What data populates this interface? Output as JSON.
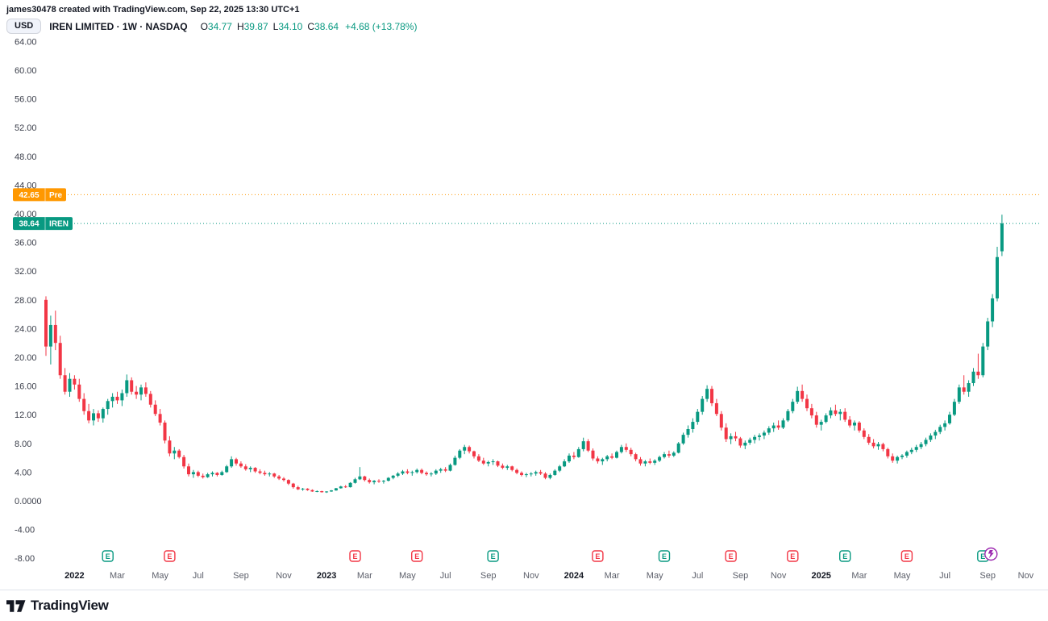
{
  "attribution": "james30478 created with TradingView.com, Sep 22, 2025 13:30 UTC+1",
  "toolbar": {
    "currency_label": "USD"
  },
  "legend": {
    "symbol_title": "IREN LIMITED · 1W · NASDAQ",
    "ohlc": {
      "open_label": "O",
      "open": "34.77",
      "high_label": "H",
      "high": "39.87",
      "low_label": "L",
      "low": "34.10",
      "close_label": "C",
      "close": "38.64",
      "change": "+4.68 (+13.78%)"
    }
  },
  "price_lines": [
    {
      "price": 42.65,
      "value": "42.65",
      "tag": "Pre",
      "color_key": "pre"
    },
    {
      "price": 38.64,
      "value": "38.64",
      "tag": "IREN",
      "color_key": "last"
    }
  ],
  "colors": {
    "up": "#089981",
    "down": "#f23645",
    "pre": "#ff9800",
    "last": "#089981",
    "flash": "#9c27b0",
    "axis_text": "#3a3e4a",
    "major_text": "#131722",
    "muted_text": "#5d606b",
    "border": "#e0e3eb"
  },
  "footer": {
    "brand": "TradingView"
  },
  "chart_data": {
    "type": "candlestick",
    "symbol": "IREN",
    "interval": "1W",
    "exchange": "NASDAQ",
    "title": "IREN LIMITED · 1W · NASDAQ",
    "ylim": [
      -8,
      64
    ],
    "grid": false,
    "y_ticks": [
      {
        "v": 64,
        "t": "64.00"
      },
      {
        "v": 60,
        "t": "60.00"
      },
      {
        "v": 56,
        "t": "56.00"
      },
      {
        "v": 52,
        "t": "52.00"
      },
      {
        "v": 48,
        "t": "48.00"
      },
      {
        "v": 44,
        "t": "44.00"
      },
      {
        "v": 40,
        "t": "40.00"
      },
      {
        "v": 36,
        "t": "36.00"
      },
      {
        "v": 32,
        "t": "32.00"
      },
      {
        "v": 28,
        "t": "28.00"
      },
      {
        "v": 24,
        "t": "24.00"
      },
      {
        "v": 20,
        "t": "20.00"
      },
      {
        "v": 16,
        "t": "16.00"
      },
      {
        "v": 12,
        "t": "12.00"
      },
      {
        "v": 8,
        "t": "8.00"
      },
      {
        "v": 4,
        "t": "4.00"
      },
      {
        "v": 0,
        "t": "0.0000"
      },
      {
        "v": -4,
        "t": "-4.00"
      },
      {
        "v": -8,
        "t": "-8.00"
      }
    ],
    "x_ticks": [
      {
        "i": 6,
        "t": "2022",
        "major": true
      },
      {
        "i": 15,
        "t": "Mar"
      },
      {
        "i": 24,
        "t": "May"
      },
      {
        "i": 32,
        "t": "Jul"
      },
      {
        "i": 41,
        "t": "Sep"
      },
      {
        "i": 50,
        "t": "Nov"
      },
      {
        "i": 59,
        "t": "2023",
        "major": true
      },
      {
        "i": 67,
        "t": "Mar"
      },
      {
        "i": 76,
        "t": "May"
      },
      {
        "i": 84,
        "t": "Jul"
      },
      {
        "i": 93,
        "t": "Sep"
      },
      {
        "i": 102,
        "t": "Nov"
      },
      {
        "i": 111,
        "t": "2024",
        "major": true
      },
      {
        "i": 119,
        "t": "Mar"
      },
      {
        "i": 128,
        "t": "May"
      },
      {
        "i": 137,
        "t": "Jul"
      },
      {
        "i": 146,
        "t": "Sep"
      },
      {
        "i": 154,
        "t": "Nov"
      },
      {
        "i": 163,
        "t": "2025",
        "major": true
      },
      {
        "i": 171,
        "t": "Mar"
      },
      {
        "i": 180,
        "t": "May"
      },
      {
        "i": 189,
        "t": "Jul"
      },
      {
        "i": 198,
        "t": "Sep"
      },
      {
        "i": 206,
        "t": "Nov"
      }
    ],
    "earnings_markers": [
      {
        "i": 13,
        "c": "green"
      },
      {
        "i": 26,
        "c": "red"
      },
      {
        "i": 65,
        "c": "red"
      },
      {
        "i": 78,
        "c": "red"
      },
      {
        "i": 94,
        "c": "green"
      },
      {
        "i": 116,
        "c": "red"
      },
      {
        "i": 130,
        "c": "green"
      },
      {
        "i": 144,
        "c": "red"
      },
      {
        "i": 157,
        "c": "red"
      },
      {
        "i": 168,
        "c": "green"
      },
      {
        "i": 181,
        "c": "red"
      },
      {
        "i": 197,
        "c": "green",
        "flash": true
      }
    ],
    "candles": [
      [
        28.0,
        28.5,
        20.2,
        21.5
      ],
      [
        21.5,
        25.8,
        19.0,
        24.5
      ],
      [
        24.5,
        26.5,
        21.0,
        22.0
      ],
      [
        22.0,
        23.0,
        17.0,
        17.5
      ],
      [
        17.5,
        18.5,
        14.8,
        15.2
      ],
      [
        15.2,
        17.8,
        14.5,
        17.0
      ],
      [
        17.0,
        17.5,
        15.5,
        16.2
      ],
      [
        16.2,
        17.0,
        13.8,
        14.2
      ],
      [
        14.2,
        15.0,
        12.0,
        12.5
      ],
      [
        12.5,
        13.5,
        10.8,
        11.2
      ],
      [
        11.2,
        12.8,
        10.5,
        12.2
      ],
      [
        12.2,
        12.6,
        11.0,
        11.5
      ],
      [
        11.5,
        13.0,
        10.9,
        12.8
      ],
      [
        12.8,
        14.2,
        12.0,
        13.9
      ],
      [
        13.9,
        15.0,
        13.0,
        14.5
      ],
      [
        14.5,
        15.2,
        13.5,
        14.0
      ],
      [
        14.0,
        15.5,
        13.2,
        15.0
      ],
      [
        15.0,
        17.6,
        14.5,
        16.8
      ],
      [
        16.8,
        17.2,
        14.8,
        15.2
      ],
      [
        15.2,
        16.0,
        14.2,
        14.8
      ],
      [
        14.8,
        16.2,
        14.0,
        15.8
      ],
      [
        15.8,
        16.5,
        14.5,
        14.9
      ],
      [
        14.9,
        15.3,
        13.0,
        13.4
      ],
      [
        13.4,
        14.0,
        11.8,
        12.1
      ],
      [
        12.1,
        12.8,
        10.5,
        10.9
      ],
      [
        10.9,
        11.2,
        8.0,
        8.4
      ],
      [
        8.4,
        9.0,
        6.2,
        6.6
      ],
      [
        6.6,
        7.5,
        5.8,
        7.0
      ],
      [
        7.0,
        7.2,
        5.9,
        6.1
      ],
      [
        6.1,
        6.4,
        4.5,
        4.8
      ],
      [
        4.8,
        5.2,
        3.4,
        3.7
      ],
      [
        3.7,
        4.3,
        3.2,
        4.0
      ],
      [
        4.0,
        4.2,
        3.3,
        3.5
      ],
      [
        3.5,
        3.8,
        3.1,
        3.3
      ],
      [
        3.3,
        3.9,
        3.2,
        3.7
      ],
      [
        3.7,
        4.1,
        3.4,
        3.9
      ],
      [
        3.9,
        4.0,
        3.4,
        3.6
      ],
      [
        3.6,
        4.2,
        3.5,
        4.0
      ],
      [
        4.0,
        5.0,
        3.9,
        4.8
      ],
      [
        4.8,
        6.2,
        4.6,
        5.8
      ],
      [
        5.8,
        6.0,
        4.9,
        5.2
      ],
      [
        5.2,
        5.5,
        4.6,
        4.8
      ],
      [
        4.8,
        5.1,
        4.2,
        4.4
      ],
      [
        4.4,
        4.8,
        4.0,
        4.6
      ],
      [
        4.6,
        4.7,
        3.9,
        4.1
      ],
      [
        4.1,
        4.4,
        3.7,
        3.9
      ],
      [
        3.9,
        4.2,
        3.5,
        3.7
      ],
      [
        3.7,
        4.0,
        3.4,
        3.8
      ],
      [
        3.8,
        3.9,
        3.2,
        3.4
      ],
      [
        3.4,
        3.6,
        2.9,
        3.1
      ],
      [
        3.1,
        3.3,
        2.7,
        2.9
      ],
      [
        2.9,
        3.0,
        2.2,
        2.4
      ],
      [
        2.4,
        2.5,
        1.7,
        1.9
      ],
      [
        1.9,
        2.1,
        1.5,
        1.6
      ],
      [
        1.6,
        1.8,
        1.4,
        1.7
      ],
      [
        1.7,
        1.75,
        1.4,
        1.5
      ],
      [
        1.5,
        1.6,
        1.25,
        1.3
      ],
      [
        1.3,
        1.45,
        1.2,
        1.35
      ],
      [
        1.35,
        1.4,
        1.15,
        1.2
      ],
      [
        1.2,
        1.35,
        1.1,
        1.3
      ],
      [
        1.3,
        1.5,
        1.25,
        1.45
      ],
      [
        1.45,
        1.8,
        1.4,
        1.75
      ],
      [
        1.75,
        2.1,
        1.7,
        2.0
      ],
      [
        2.0,
        2.2,
        1.8,
        1.9
      ],
      [
        1.9,
        2.6,
        1.85,
        2.5
      ],
      [
        2.5,
        3.2,
        2.4,
        3.0
      ],
      [
        3.0,
        4.7,
        2.9,
        3.4
      ],
      [
        3.4,
        3.5,
        2.7,
        2.9
      ],
      [
        2.9,
        3.1,
        2.4,
        2.6
      ],
      [
        2.6,
        2.9,
        2.3,
        2.8
      ],
      [
        2.8,
        3.0,
        2.5,
        2.7
      ],
      [
        2.7,
        2.9,
        2.4,
        2.8
      ],
      [
        2.8,
        3.3,
        2.7,
        3.2
      ],
      [
        3.2,
        3.6,
        3.0,
        3.5
      ],
      [
        3.5,
        4.0,
        3.3,
        3.8
      ],
      [
        3.8,
        4.3,
        3.6,
        4.1
      ],
      [
        4.1,
        4.4,
        3.7,
        3.9
      ],
      [
        3.9,
        4.2,
        3.5,
        4.0
      ],
      [
        4.0,
        4.5,
        3.8,
        4.3
      ],
      [
        4.3,
        4.5,
        3.7,
        3.9
      ],
      [
        3.9,
        4.1,
        3.5,
        3.7
      ],
      [
        3.7,
        4.0,
        3.4,
        3.8
      ],
      [
        3.8,
        4.4,
        3.6,
        4.2
      ],
      [
        4.2,
        4.6,
        3.9,
        4.4
      ],
      [
        4.4,
        4.7,
        4.0,
        4.2
      ],
      [
        4.2,
        5.2,
        4.1,
        5.0
      ],
      [
        5.0,
        6.3,
        4.9,
        6.0
      ],
      [
        6.0,
        7.2,
        5.8,
        7.0
      ],
      [
        7.0,
        7.8,
        6.5,
        7.5
      ],
      [
        7.5,
        7.7,
        6.6,
        6.9
      ],
      [
        6.9,
        7.0,
        5.9,
        6.2
      ],
      [
        6.2,
        6.5,
        5.4,
        5.6
      ],
      [
        5.6,
        6.0,
        5.0,
        5.2
      ],
      [
        5.2,
        5.6,
        4.8,
        5.4
      ],
      [
        5.4,
        5.8,
        5.0,
        5.5
      ],
      [
        5.5,
        5.6,
        4.7,
        4.9
      ],
      [
        4.9,
        5.2,
        4.4,
        4.6
      ],
      [
        4.6,
        5.0,
        4.3,
        4.8
      ],
      [
        4.8,
        4.9,
        4.1,
        4.3
      ],
      [
        4.3,
        4.5,
        3.7,
        3.9
      ],
      [
        3.9,
        4.1,
        3.4,
        3.6
      ],
      [
        3.6,
        3.9,
        3.3,
        3.7
      ],
      [
        3.7,
        4.0,
        3.4,
        3.8
      ],
      [
        3.8,
        4.2,
        3.5,
        4.0
      ],
      [
        4.0,
        4.3,
        3.6,
        3.8
      ],
      [
        3.8,
        4.0,
        3.0,
        3.2
      ],
      [
        3.2,
        3.8,
        3.0,
        3.6
      ],
      [
        3.6,
        4.4,
        3.5,
        4.2
      ],
      [
        4.2,
        5.0,
        4.0,
        4.8
      ],
      [
        4.8,
        5.8,
        4.7,
        5.5
      ],
      [
        5.5,
        6.6,
        5.3,
        6.3
      ],
      [
        6.3,
        6.8,
        5.8,
        6.1
      ],
      [
        6.1,
        7.5,
        6.0,
        7.2
      ],
      [
        7.2,
        8.8,
        6.9,
        8.3
      ],
      [
        8.3,
        8.6,
        6.8,
        7.0
      ],
      [
        7.0,
        7.3,
        5.6,
        5.9
      ],
      [
        5.9,
        6.2,
        5.2,
        5.5
      ],
      [
        5.5,
        6.0,
        5.0,
        5.8
      ],
      [
        5.8,
        6.4,
        5.5,
        6.2
      ],
      [
        6.2,
        6.6,
        5.8,
        6.0
      ],
      [
        6.0,
        7.0,
        5.9,
        6.8
      ],
      [
        6.8,
        7.8,
        6.6,
        7.5
      ],
      [
        7.5,
        8.0,
        6.8,
        7.1
      ],
      [
        7.1,
        7.4,
        6.2,
        6.5
      ],
      [
        6.5,
        6.7,
        5.5,
        5.8
      ],
      [
        5.8,
        6.1,
        4.9,
        5.2
      ],
      [
        5.2,
        5.7,
        4.8,
        5.5
      ],
      [
        5.5,
        5.9,
        5.1,
        5.3
      ],
      [
        5.3,
        5.8,
        5.0,
        5.6
      ],
      [
        5.6,
        6.3,
        5.4,
        6.1
      ],
      [
        6.1,
        6.8,
        5.9,
        6.5
      ],
      [
        6.5,
        7.0,
        6.0,
        6.3
      ],
      [
        6.3,
        6.9,
        6.1,
        6.7
      ],
      [
        6.7,
        8.2,
        6.6,
        8.0
      ],
      [
        8.0,
        9.5,
        7.8,
        9.2
      ],
      [
        9.2,
        10.5,
        8.8,
        10.0
      ],
      [
        10.0,
        11.5,
        9.5,
        11.0
      ],
      [
        11.0,
        12.8,
        10.6,
        12.4
      ],
      [
        12.4,
        14.6,
        12.0,
        14.2
      ],
      [
        14.2,
        16.1,
        13.8,
        15.6
      ],
      [
        15.6,
        16.0,
        13.2,
        13.6
      ],
      [
        13.6,
        14.2,
        11.8,
        12.1
      ],
      [
        12.1,
        12.5,
        9.8,
        10.2
      ],
      [
        10.2,
        10.8,
        8.2,
        8.6
      ],
      [
        8.6,
        9.4,
        7.9,
        9.0
      ],
      [
        9.0,
        9.6,
        8.3,
        8.7
      ],
      [
        8.7,
        8.9,
        7.4,
        7.7
      ],
      [
        7.7,
        8.4,
        7.2,
        8.1
      ],
      [
        8.1,
        8.8,
        7.8,
        8.5
      ],
      [
        8.5,
        9.2,
        8.0,
        8.9
      ],
      [
        8.9,
        9.4,
        8.4,
        9.1
      ],
      [
        9.1,
        9.8,
        8.6,
        9.5
      ],
      [
        9.5,
        10.4,
        9.2,
        10.1
      ],
      [
        10.1,
        10.9,
        9.6,
        10.5
      ],
      [
        10.5,
        11.2,
        9.9,
        10.2
      ],
      [
        10.2,
        11.5,
        10.0,
        11.2
      ],
      [
        11.2,
        12.8,
        11.0,
        12.5
      ],
      [
        12.5,
        14.2,
        12.2,
        13.8
      ],
      [
        13.8,
        15.9,
        13.5,
        15.3
      ],
      [
        15.3,
        16.2,
        13.8,
        14.2
      ],
      [
        14.2,
        14.8,
        12.5,
        12.9
      ],
      [
        12.9,
        13.5,
        11.5,
        11.9
      ],
      [
        11.9,
        12.4,
        10.2,
        10.6
      ],
      [
        10.6,
        11.3,
        9.8,
        11.0
      ],
      [
        11.0,
        12.2,
        10.8,
        11.9
      ],
      [
        11.9,
        13.0,
        11.5,
        12.6
      ],
      [
        12.6,
        13.4,
        11.8,
        12.1
      ],
      [
        12.1,
        12.8,
        11.2,
        12.4
      ],
      [
        12.4,
        12.9,
        11.0,
        11.3
      ],
      [
        11.3,
        11.8,
        10.2,
        10.5
      ],
      [
        10.5,
        11.2,
        9.8,
        10.9
      ],
      [
        10.9,
        11.1,
        9.5,
        9.8
      ],
      [
        9.8,
        10.1,
        8.6,
        8.9
      ],
      [
        8.9,
        9.3,
        7.8,
        8.1
      ],
      [
        8.1,
        8.6,
        7.3,
        7.6
      ],
      [
        7.6,
        8.2,
        7.1,
        7.9
      ],
      [
        7.9,
        8.1,
        6.9,
        7.2
      ],
      [
        7.2,
        7.4,
        5.9,
        6.2
      ],
      [
        6.2,
        6.6,
        5.3,
        5.6
      ],
      [
        5.6,
        6.3,
        5.2,
        6.1
      ],
      [
        6.1,
        6.5,
        5.8,
        6.3
      ],
      [
        6.3,
        7.0,
        6.0,
        6.8
      ],
      [
        6.8,
        7.4,
        6.5,
        7.1
      ],
      [
        7.1,
        7.8,
        6.8,
        7.5
      ],
      [
        7.5,
        8.2,
        7.2,
        7.9
      ],
      [
        7.9,
        8.8,
        7.6,
        8.5
      ],
      [
        8.5,
        9.4,
        8.2,
        9.1
      ],
      [
        9.1,
        9.9,
        8.6,
        9.6
      ],
      [
        9.6,
        10.6,
        9.3,
        10.3
      ],
      [
        10.3,
        11.2,
        9.8,
        10.8
      ],
      [
        10.8,
        12.4,
        10.6,
        12.0
      ],
      [
        12.0,
        14.2,
        11.8,
        13.8
      ],
      [
        13.8,
        16.2,
        13.5,
        15.8
      ],
      [
        15.8,
        17.5,
        14.8,
        15.2
      ],
      [
        15.2,
        16.8,
        14.5,
        16.4
      ],
      [
        16.4,
        18.5,
        16.0,
        18.0
      ],
      [
        18.0,
        20.5,
        17.0,
        17.5
      ],
      [
        17.5,
        22.0,
        17.2,
        21.5
      ],
      [
        21.5,
        25.5,
        21.0,
        25.0
      ],
      [
        25.0,
        28.8,
        24.2,
        28.2
      ],
      [
        28.2,
        35.4,
        27.8,
        33.96
      ],
      [
        34.77,
        39.87,
        34.1,
        38.64
      ]
    ]
  }
}
